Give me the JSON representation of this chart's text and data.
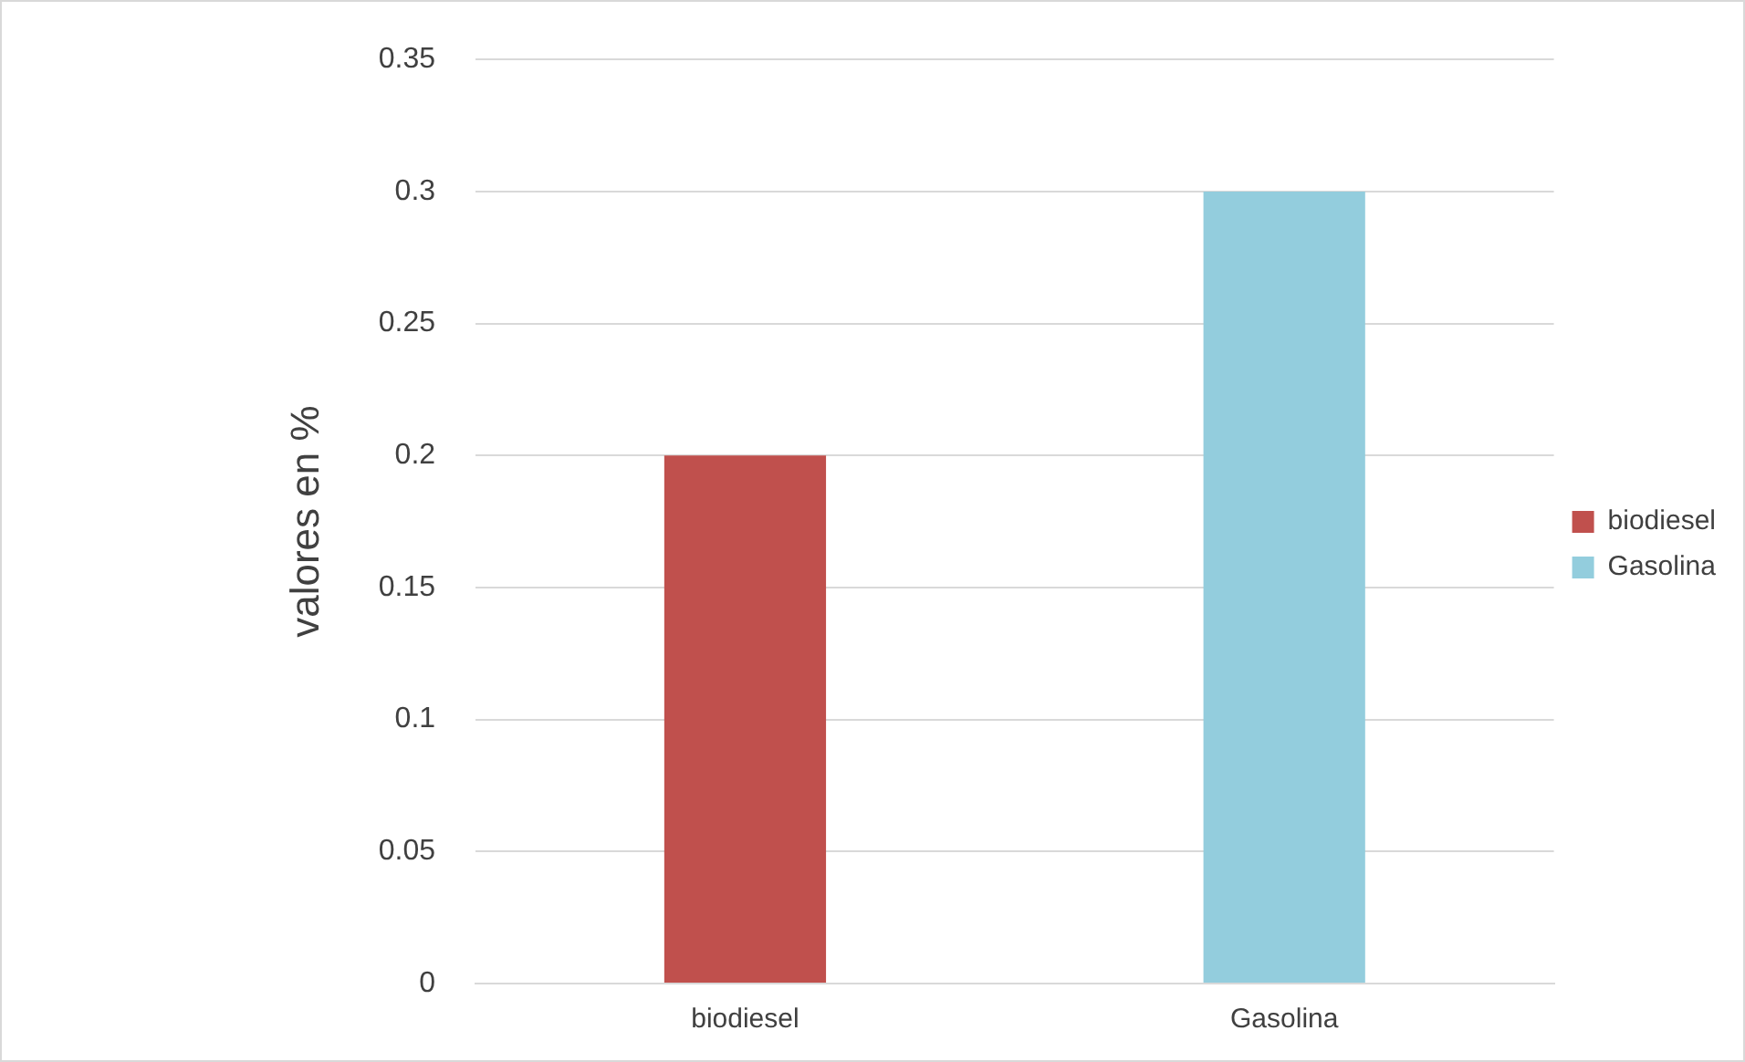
{
  "chart_data": {
    "type": "bar",
    "ylabel": "valores en %",
    "categories": [
      "biodiesel",
      "Gasolina"
    ],
    "series": [
      {
        "name": "biodiesel",
        "color": "#c0504d",
        "values": [
          0.2,
          null
        ]
      },
      {
        "name": "Gasolina",
        "color": "#93cddd",
        "values": [
          null,
          0.3
        ]
      }
    ],
    "ylim": [
      0,
      0.35
    ],
    "yticks": [
      0,
      0.05,
      0.1,
      0.15,
      0.2,
      0.25,
      0.3,
      0.35
    ],
    "grid": "y",
    "legend": "right"
  }
}
